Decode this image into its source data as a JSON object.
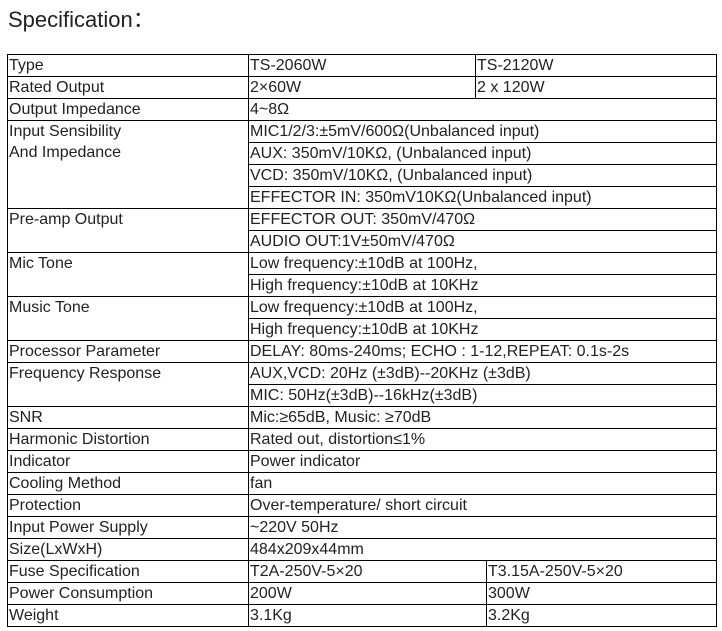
{
  "title": "Specification：",
  "rows": [
    {
      "label": "Type",
      "a": "TS-2060W",
      "b": "TS-2120W",
      "split": "early"
    },
    {
      "label": "Rated Output",
      "a": "2×60W",
      "b": "2  x 120W",
      "split": "early"
    },
    {
      "label": "Output Impedance",
      "a": "4~8Ω"
    },
    {
      "label": "Input Sensibility\nAnd Impedance",
      "values": [
        "MIC1/2/3:±5mV/600Ω(Unbalanced input)",
        "AUX: 350mV/10KΩ, (Unbalanced input)",
        "VCD: 350mV/10KΩ, (Unbalanced input)",
        "EFFECTOR IN: 350mV10KΩ(Unbalanced input)"
      ]
    },
    {
      "label": "Pre-amp Output",
      "values": [
        "EFFECTOR OUT: 350mV/470Ω",
        "AUDIO OUT:1V±50mV/470Ω"
      ]
    },
    {
      "label": "Mic Tone",
      "values": [
        "Low frequency:±10dB at 100Hz,",
        "High frequency:±10dB at 10KHz"
      ]
    },
    {
      "label": "Music Tone",
      "values": [
        "Low frequency:±10dB at 100Hz,",
        "High frequency:±10dB at 10KHz"
      ]
    },
    {
      "label": "Processor Parameter",
      "a": "DELAY: 80ms-240ms; ECHO : 1-12,REPEAT: 0.1s-2s"
    },
    {
      "label": "Frequency Response",
      "values": [
        "AUX,VCD: 20Hz (±3dB)--20KHz (±3dB)",
        "MIC: 50Hz(±3dB)--16kHz(±3dB)"
      ]
    },
    {
      "label": "SNR",
      "a": "Mic:≥65dB, Music: ≥70dB"
    },
    {
      "label": "Harmonic Distortion",
      "a": "Rated out, distortion≤1%"
    },
    {
      "label": "Indicator",
      "a": "Power indicator"
    },
    {
      "label": "Cooling Method",
      "a": "fan"
    },
    {
      "label": "Protection",
      "a": "Over-temperature/ short circuit"
    },
    {
      "label": "Input Power Supply",
      "a": "~220V  50Hz"
    },
    {
      "label": "Size(LxWxH)",
      "a": "484x209x44mm"
    },
    {
      "label": "Fuse Specification",
      "a": "T2A-250V-5×20",
      "b": "T3.15A-250V-5×20",
      "split": "late"
    },
    {
      "label": "Power Consumption",
      "a": "200W",
      "b": "300W",
      "split": "late"
    },
    {
      "label": "Weight",
      "a": "3.1Kg",
      "b": "3.2Kg",
      "split": "late"
    }
  ]
}
